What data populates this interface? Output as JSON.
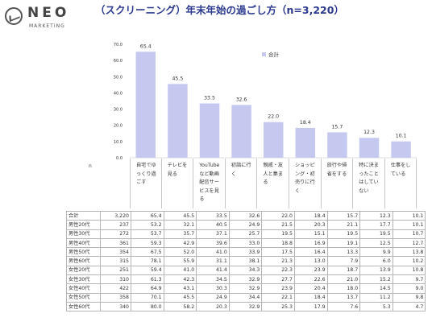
{
  "brand": {
    "name": "NEO",
    "sub": "MARKETING"
  },
  "title": "（スクリーニング）年末年始の過ごし方（n=3,220）",
  "n_label": "n",
  "chart_data": {
    "type": "bar",
    "ylim": [
      0,
      70
    ],
    "yticks": [
      "0.0",
      "10.0",
      "20.0",
      "30.0",
      "40.0",
      "50.0",
      "60.0",
      "70.0"
    ],
    "legend_position": "top-right",
    "bar_color": "#c5c9ef",
    "categories": [
      "自宅でゆっくり過ごす",
      "テレビを見る",
      "YouTubeなど動画配信サービスを見る",
      "初詣に行く",
      "親戚・友人と集まる",
      "ショッピング・初売りに行く",
      "旅行や帰省をする",
      "特に決まったことはしていない",
      "仕事をしている"
    ],
    "series": [
      {
        "name": "合計",
        "values": [
          65.4,
          45.5,
          33.5,
          32.6,
          22.0,
          18.4,
          15.7,
          12.3,
          10.1
        ]
      }
    ]
  },
  "table": {
    "rows": [
      {
        "label": "合計",
        "n": "3,220",
        "values": [
          "65.4",
          "45.5",
          "33.5",
          "32.6",
          "22.0",
          "18.4",
          "15.7",
          "12.3",
          "10.1"
        ]
      },
      {
        "label": "男性20代",
        "n": "237",
        "values": [
          "53.2",
          "32.1",
          "40.5",
          "24.9",
          "21.5",
          "20.3",
          "21.1",
          "17.7",
          "10.1"
        ]
      },
      {
        "label": "男性30代",
        "n": "272",
        "values": [
          "53.7",
          "35.7",
          "37.1",
          "25.7",
          "19.5",
          "15.1",
          "19.5",
          "19.5",
          "10.7"
        ]
      },
      {
        "label": "男性40代",
        "n": "361",
        "values": [
          "59.3",
          "42.9",
          "39.6",
          "33.0",
          "18.8",
          "16.9",
          "19.1",
          "12.5",
          "12.7"
        ]
      },
      {
        "label": "男性50代",
        "n": "354",
        "values": [
          "67.5",
          "52.0",
          "41.0",
          "33.9",
          "17.5",
          "16.4",
          "13.3",
          "9.9",
          "13.8"
        ]
      },
      {
        "label": "男性60代",
        "n": "315",
        "values": [
          "78.1",
          "55.9",
          "31.1",
          "38.1",
          "21.3",
          "13.0",
          "7.9",
          "6.0",
          "10.2"
        ]
      },
      {
        "label": "女性20代",
        "n": "251",
        "values": [
          "59.4",
          "41.0",
          "41.4",
          "34.3",
          "22.3",
          "23.9",
          "18.7",
          "13.9",
          "10.8"
        ]
      },
      {
        "label": "女性30代",
        "n": "310",
        "values": [
          "61.3",
          "42.3",
          "34.5",
          "32.9",
          "27.7",
          "22.6",
          "21.0",
          "15.2",
          "9.7"
        ]
      },
      {
        "label": "女性40代",
        "n": "422",
        "values": [
          "64.9",
          "43.1",
          "30.3",
          "32.9",
          "23.9",
          "20.4",
          "18.0",
          "14.5",
          "9.0"
        ]
      },
      {
        "label": "女性50代",
        "n": "358",
        "values": [
          "70.1",
          "45.5",
          "24.9",
          "34.4",
          "22.1",
          "18.4",
          "13.7",
          "11.2",
          "9.8"
        ]
      },
      {
        "label": "女性60代",
        "n": "340",
        "values": [
          "80.0",
          "58.2",
          "20.3",
          "32.9",
          "25.3",
          "17.9",
          "7.6",
          "5.3",
          "4.7"
        ]
      }
    ]
  }
}
